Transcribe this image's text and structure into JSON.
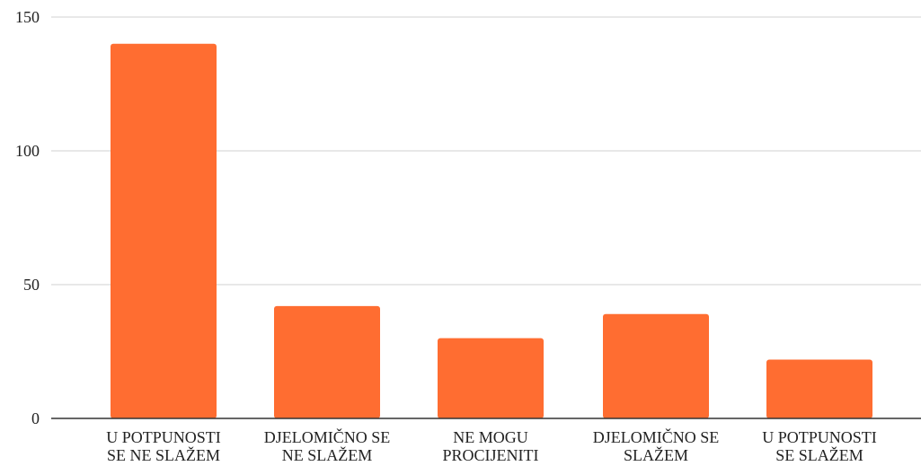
{
  "chart_data": {
    "type": "bar",
    "categories": [
      [
        "U POTPUNOSTI",
        "SE NE SLAŽEM"
      ],
      [
        "DJELOMIČNO SE",
        "NE SLAŽEM"
      ],
      [
        "NE MOGU",
        "PROCIJENITI"
      ],
      [
        "DJELOMIČNO SE",
        "SLAŽEM"
      ],
      [
        "U POTPUNOSTI",
        "SE SLAŽEM"
      ]
    ],
    "values": [
      140,
      42,
      30,
      39,
      22
    ],
    "ylim": [
      0,
      150
    ],
    "yticks": [
      "0",
      "50",
      "100",
      "150"
    ],
    "ytick_values": [
      0,
      50,
      100,
      150
    ],
    "grid": true,
    "legend": "none",
    "colors": {
      "bar": "#ff6d31",
      "grid": "#d0d0d0",
      "axis": "#333333"
    }
  }
}
